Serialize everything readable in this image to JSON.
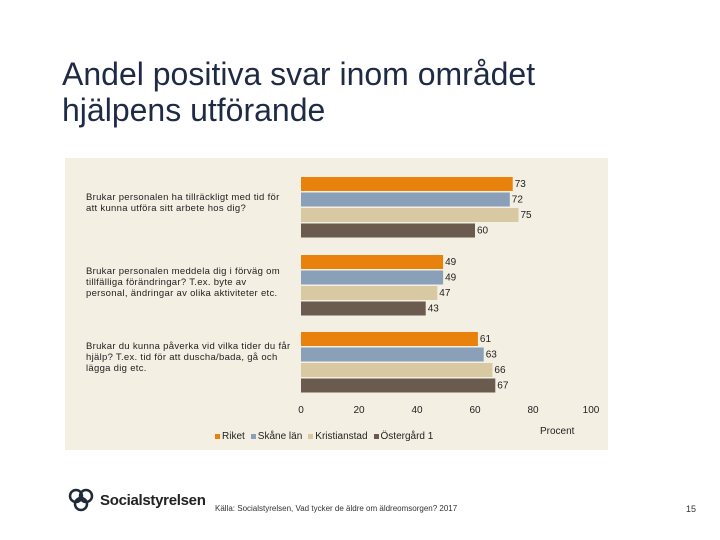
{
  "title": "Andel positiva svar inom området hjälpens utförande",
  "chart_data": {
    "type": "bar",
    "orientation": "horizontal",
    "categories": [
      "Brukar personalen ha tillräckligt med tid för att kunna utföra sitt arbete hos dig?",
      "Brukar personalen meddela dig i förväg om tillfälliga förändringar? T.ex. byte av personal, ändringar av olika aktiviteter etc.",
      "Brukar du kunna påverka vid vilka tider du får hjälp? T.ex. tid för att duscha/bada, gå och lägga dig etc."
    ],
    "series": [
      {
        "name": "Riket",
        "color": "#e8820c",
        "values": [
          73,
          49,
          61
        ]
      },
      {
        "name": "Skåne län",
        "color": "#8aa0b8",
        "values": [
          72,
          49,
          63
        ]
      },
      {
        "name": "Kristianstad",
        "color": "#d9c9a3",
        "values": [
          75,
          47,
          66
        ]
      },
      {
        "name": "Östergård 1",
        "color": "#6b5a4e",
        "values": [
          60,
          43,
          67
        ]
      }
    ],
    "xlim": [
      0,
      100
    ],
    "xticks": [
      "0",
      "20",
      "40",
      "60",
      "80",
      "100"
    ],
    "xlabel": "Procent",
    "legend": "bottom"
  },
  "footer": {
    "logo_text": "Socialstyrelsen",
    "source": "Källa: Socialstyrelsen, Vad tycker de äldre om äldreomsorgen? 2017",
    "page": "15"
  }
}
